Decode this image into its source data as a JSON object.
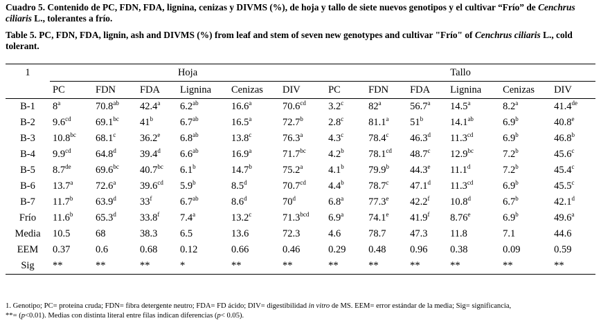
{
  "caption_es": {
    "part1": "Cuadro 5. Contenido de PC, FDN, FDA, lignina, cenizas y DIVMS (%), de hoja y tallo de siete nuevos genotipos y el cultivar “Frío” de ",
    "italic": "Cenchrus ciliaris",
    "part2": " L., tolerantes a frío."
  },
  "caption_en": {
    "part1": "Table 5. PC, FDN, FDA, lignin, ash and DIVMS (%) from leaf and stem of seven new genotypes and cultivar \"Frío\" of ",
    "italic": "Cenchrus ciliaris",
    "part2": " L., cold tolerant."
  },
  "table": {
    "corner_label": "1",
    "group_hoja": "Hoja",
    "group_tallo": "Tallo",
    "columns": [
      "PC",
      "FDN",
      "FDA",
      "Lignina",
      "Cenizas",
      "DIV",
      "PC",
      "FDN",
      "FDA",
      "Lignina",
      "Cenizas",
      "DIV"
    ],
    "rows": [
      {
        "label": "B-1",
        "cells": [
          [
            "8",
            "a"
          ],
          [
            "70.8",
            "ab"
          ],
          [
            "42.4",
            "a"
          ],
          [
            "6.2",
            "ab"
          ],
          [
            "16.6",
            "a"
          ],
          [
            "70.6",
            "cd"
          ],
          [
            "3.2",
            "c"
          ],
          [
            "82",
            "a"
          ],
          [
            "56.7",
            "a"
          ],
          [
            "14.5",
            "a"
          ],
          [
            "8.2",
            "a"
          ],
          [
            "41.4",
            "de"
          ]
        ]
      },
      {
        "label": "B-2",
        "cells": [
          [
            "9.6",
            "cd"
          ],
          [
            "69.1",
            "bc"
          ],
          [
            "41",
            "b"
          ],
          [
            "6.7",
            "ab"
          ],
          [
            "16.5",
            "a"
          ],
          [
            "72.7",
            "b"
          ],
          [
            "2.8",
            "c"
          ],
          [
            "81.1",
            "a"
          ],
          [
            "51",
            "b"
          ],
          [
            "14.1",
            "ab"
          ],
          [
            "6.9",
            "b"
          ],
          [
            "40.8",
            "e"
          ]
        ]
      },
      {
        "label": "B-3",
        "cells": [
          [
            "10.8",
            "bc"
          ],
          [
            "68.1",
            "c"
          ],
          [
            "36.2",
            "e"
          ],
          [
            "6.8",
            "ab"
          ],
          [
            "13.8",
            "c"
          ],
          [
            "76.3",
            "a"
          ],
          [
            "4.3",
            "c"
          ],
          [
            "78.4",
            "c"
          ],
          [
            "46.3",
            "d"
          ],
          [
            "11.3",
            "cd"
          ],
          [
            "6.9",
            "b"
          ],
          [
            "46.8",
            "b"
          ]
        ]
      },
      {
        "label": "B-4",
        "cells": [
          [
            "9.9",
            "cd"
          ],
          [
            "64.8",
            "d"
          ],
          [
            "39.4",
            "d"
          ],
          [
            "6.6",
            "ab"
          ],
          [
            "16.9",
            "a"
          ],
          [
            "71.7",
            "bc"
          ],
          [
            "4.2",
            "b"
          ],
          [
            "78.1",
            "cd"
          ],
          [
            "48.7",
            "c"
          ],
          [
            "12.9",
            "bc"
          ],
          [
            "7.2",
            "b"
          ],
          [
            "45.6",
            "c"
          ]
        ]
      },
      {
        "label": "B-5",
        "cells": [
          [
            "8.7",
            "de"
          ],
          [
            "69.6",
            "bc"
          ],
          [
            "40.7",
            "bc"
          ],
          [
            "6.1",
            "b"
          ],
          [
            "14.7",
            "b"
          ],
          [
            "75.2",
            "a"
          ],
          [
            "4.1",
            "b"
          ],
          [
            "79.9",
            "b"
          ],
          [
            "44.3",
            "e"
          ],
          [
            "11.1",
            "d"
          ],
          [
            "7.2",
            "b"
          ],
          [
            "45.4",
            "c"
          ]
        ]
      },
      {
        "label": "B-6",
        "cells": [
          [
            "13.7",
            "a"
          ],
          [
            "72.6",
            "a"
          ],
          [
            "39.6",
            "cd"
          ],
          [
            "5.9",
            "b"
          ],
          [
            "8.5",
            "d"
          ],
          [
            "70.7",
            "cd"
          ],
          [
            "4.4",
            "b"
          ],
          [
            "78.7",
            "c"
          ],
          [
            "47.1",
            "d"
          ],
          [
            "11.3",
            "cd"
          ],
          [
            "6.9",
            "b"
          ],
          [
            "45.5",
            "c"
          ]
        ]
      },
      {
        "label": "B-7",
        "cells": [
          [
            "11.7",
            "b"
          ],
          [
            "63.9",
            "d"
          ],
          [
            "33",
            "f"
          ],
          [
            "6.7",
            "ab"
          ],
          [
            "8.6",
            "d"
          ],
          [
            "70",
            "d"
          ],
          [
            "6.8",
            "a"
          ],
          [
            "77.3",
            "e"
          ],
          [
            "42.2",
            "f"
          ],
          [
            "10.8",
            "d"
          ],
          [
            "6.7",
            "b"
          ],
          [
            "42.1",
            "d"
          ]
        ]
      },
      {
        "label": "Frío",
        "cells": [
          [
            "11.6",
            "b"
          ],
          [
            "65.3",
            "d"
          ],
          [
            "33.8",
            "f"
          ],
          [
            "7.4",
            "a"
          ],
          [
            "13.2",
            "c"
          ],
          [
            "71.3",
            "bcd"
          ],
          [
            "6.9",
            "a"
          ],
          [
            "74.1",
            "e"
          ],
          [
            "41.9",
            "f"
          ],
          [
            "8.76",
            "e"
          ],
          [
            "6.9",
            "b"
          ],
          [
            "49.6",
            "a"
          ]
        ]
      },
      {
        "label": "Media",
        "cells": [
          [
            "10.5",
            ""
          ],
          [
            "68",
            ""
          ],
          [
            "38.3",
            ""
          ],
          [
            "6.5",
            ""
          ],
          [
            "13.6",
            ""
          ],
          [
            "72.3",
            ""
          ],
          [
            "4.6",
            ""
          ],
          [
            "78.7",
            ""
          ],
          [
            "47.3",
            ""
          ],
          [
            "11.8",
            ""
          ],
          [
            "7.1",
            ""
          ],
          [
            "44.6",
            ""
          ]
        ]
      },
      {
        "label": "EEM",
        "cells": [
          [
            "0.37",
            ""
          ],
          [
            "0.6",
            ""
          ],
          [
            "0.68",
            ""
          ],
          [
            "0.12",
            ""
          ],
          [
            "0.66",
            ""
          ],
          [
            "0.46",
            ""
          ],
          [
            "0.29",
            ""
          ],
          [
            "0.48",
            ""
          ],
          [
            "0.96",
            ""
          ],
          [
            "0.38",
            ""
          ],
          [
            "0.09",
            ""
          ],
          [
            "0.59",
            ""
          ]
        ]
      },
      {
        "label": "Sig",
        "cells": [
          [
            "**",
            ""
          ],
          [
            "**",
            ""
          ],
          [
            "**",
            ""
          ],
          [
            "*",
            ""
          ],
          [
            "**",
            ""
          ],
          [
            "**",
            ""
          ],
          [
            "**",
            ""
          ],
          [
            "**",
            ""
          ],
          [
            "**",
            ""
          ],
          [
            "**",
            ""
          ],
          [
            "**",
            ""
          ],
          [
            "**",
            ""
          ]
        ]
      }
    ]
  },
  "footnote": {
    "line1_a": "1. Genotipo; PC= proteína cruda; FDN= fibra detergente neutro; FDA= FD ácido; DIV= digestibilidad ",
    "line1_italic": "in vitro",
    "line1_b": " de MS. EEM= error estándar de la media; Sig= significancia,",
    "line2_a": "**= (",
    "line2_p1": "p",
    "line2_b": "<0.01). Medias con distinta literal entre filas indican diferencias (",
    "line2_p2": "p",
    "line2_c": "< 0.05)."
  }
}
